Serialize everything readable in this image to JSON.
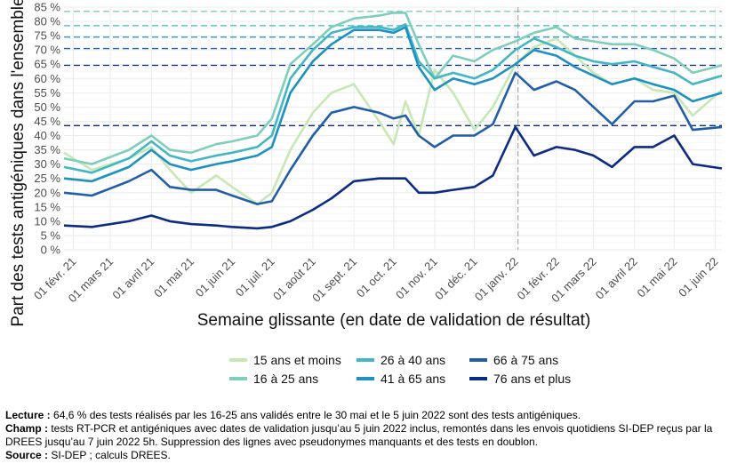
{
  "chart_data": {
    "type": "line",
    "title": "",
    "ylabel": "Part des tests antigéniques dans l'ensemble",
    "xlabel": "Semaine glissante (en date de validation de résultat)",
    "ylim": [
      0,
      85
    ],
    "y_ticks": [
      0,
      5,
      10,
      15,
      20,
      25,
      30,
      35,
      40,
      45,
      50,
      55,
      60,
      65,
      70,
      75,
      80,
      85
    ],
    "y_tick_labels": [
      "0 %",
      "5 %",
      "10 %",
      "15 %",
      "20 %",
      "25 %",
      "30 %",
      "35 %",
      "40 %",
      "45 %",
      "50 %",
      "55 %",
      "60 %",
      "65 %",
      "70 %",
      "75 %",
      "80 %",
      "85 %"
    ],
    "x_tick_labels": [
      "01 févr. 21",
      "01 mars 21",
      "01 avril 21",
      "01 mai 21",
      "01 juin 21",
      "01 juil. 21",
      "01 août 21",
      "01 sept. 21",
      "01 oct. 21",
      "01 nov. 21",
      "01 déc. 21",
      "01 janv. 22",
      "01 févr. 22",
      "01 mars 22",
      "01 avril 22",
      "01 mai 22",
      "01 juin 22"
    ],
    "x_ticks": [
      "2021-02-01",
      "2021-03-01",
      "2021-04-01",
      "2021-05-01",
      "2021-06-01",
      "2021-07-01",
      "2021-08-01",
      "2021-09-01",
      "2021-10-01",
      "2021-11-01",
      "2021-12-01",
      "2022-01-01",
      "2022-02-01",
      "2022-03-01",
      "2022-04-01",
      "2022-05-01",
      "2022-06-01"
    ],
    "xlim": [
      "2021-01-25",
      "2022-06-06"
    ],
    "grid": true,
    "legend_position": "bottom",
    "vertical_line": "2022-01-03",
    "reference_lines": [
      83.5,
      78.5,
      74.5,
      70.5,
      64.6,
      43.5
    ],
    "series": [
      {
        "name": "15 ans et moins",
        "color": "#c6e8b4",
        "x": [
          "2021-01-25",
          "2021-02-15",
          "2021-03-15",
          "2021-04-01",
          "2021-04-15",
          "2021-05-01",
          "2021-05-20",
          "2021-06-01",
          "2021-06-20",
          "2021-07-01",
          "2021-07-15",
          "2021-08-01",
          "2021-08-15",
          "2021-09-01",
          "2021-09-20",
          "2021-10-01",
          "2021-10-10",
          "2021-10-20",
          "2021-11-01",
          "2021-11-15",
          "2021-12-01",
          "2021-12-15",
          "2022-01-01",
          "2022-01-15",
          "2022-02-01",
          "2022-02-15",
          "2022-03-01",
          "2022-03-15",
          "2022-04-01",
          "2022-04-15",
          "2022-05-01",
          "2022-05-15",
          "2022-06-06"
        ],
        "values": [
          34,
          28,
          32,
          36,
          28,
          20,
          26,
          22,
          16,
          20,
          35,
          48,
          55,
          58,
          45,
          37,
          52,
          40,
          63,
          55,
          42,
          50,
          65,
          71,
          74,
          68,
          62,
          58,
          60,
          56,
          55,
          47,
          56
        ]
      },
      {
        "name": "16 à 25 ans",
        "color": "#7fcdbb",
        "x": [
          "2021-01-25",
          "2021-02-15",
          "2021-03-15",
          "2021-04-01",
          "2021-04-15",
          "2021-05-01",
          "2021-05-20",
          "2021-06-01",
          "2021-06-20",
          "2021-07-01",
          "2021-07-15",
          "2021-08-01",
          "2021-08-15",
          "2021-09-01",
          "2021-09-20",
          "2021-10-01",
          "2021-10-10",
          "2021-10-20",
          "2021-11-01",
          "2021-11-15",
          "2021-12-01",
          "2021-12-15",
          "2022-01-01",
          "2022-01-15",
          "2022-02-01",
          "2022-02-15",
          "2022-03-01",
          "2022-03-15",
          "2022-04-01",
          "2022-04-15",
          "2022-05-01",
          "2022-05-15",
          "2022-06-06"
        ],
        "values": [
          32,
          30,
          35,
          40,
          35,
          34,
          37,
          38,
          40,
          46,
          65,
          72,
          78,
          81,
          82,
          83,
          83,
          72,
          60,
          68,
          66,
          70,
          73,
          76,
          78,
          74,
          73,
          72,
          72,
          70,
          67,
          62,
          64.6
        ]
      },
      {
        "name": "26 à 40 ans",
        "color": "#41b6c4",
        "x": [
          "2021-01-25",
          "2021-02-15",
          "2021-03-15",
          "2021-04-01",
          "2021-04-15",
          "2021-05-01",
          "2021-05-20",
          "2021-06-01",
          "2021-06-20",
          "2021-07-01",
          "2021-07-15",
          "2021-08-01",
          "2021-08-15",
          "2021-09-01",
          "2021-09-20",
          "2021-10-01",
          "2021-10-10",
          "2021-10-20",
          "2021-11-01",
          "2021-11-15",
          "2021-12-01",
          "2021-12-15",
          "2022-01-01",
          "2022-01-15",
          "2022-02-01",
          "2022-02-15",
          "2022-03-01",
          "2022-03-15",
          "2022-04-01",
          "2022-04-15",
          "2022-05-01",
          "2022-05-15",
          "2022-06-06"
        ],
        "values": [
          29,
          27,
          32,
          38,
          33,
          31,
          33,
          34,
          36,
          40,
          60,
          70,
          76,
          78,
          78,
          77,
          79,
          66,
          60,
          62,
          60,
          63,
          70,
          74,
          71,
          68,
          66,
          65,
          66,
          64,
          62,
          58,
          61
        ]
      },
      {
        "name": "41 à 65 ans",
        "color": "#1d91c0",
        "x": [
          "2021-01-25",
          "2021-02-15",
          "2021-03-15",
          "2021-04-01",
          "2021-04-15",
          "2021-05-01",
          "2021-05-20",
          "2021-06-01",
          "2021-06-20",
          "2021-07-01",
          "2021-07-15",
          "2021-08-01",
          "2021-08-15",
          "2021-09-01",
          "2021-09-20",
          "2021-10-01",
          "2021-10-10",
          "2021-10-20",
          "2021-11-01",
          "2021-11-15",
          "2021-12-01",
          "2021-12-15",
          "2022-01-01",
          "2022-01-15",
          "2022-02-01",
          "2022-02-15",
          "2022-03-01",
          "2022-03-15",
          "2022-04-01",
          "2022-04-15",
          "2022-05-01",
          "2022-05-15",
          "2022-06-06"
        ],
        "values": [
          25,
          24,
          29,
          35,
          30,
          28,
          30,
          31,
          33,
          36,
          55,
          66,
          72,
          77,
          77,
          76,
          78,
          64,
          56,
          60,
          58,
          60,
          65,
          70,
          68,
          64,
          61,
          58,
          60,
          58,
          56,
          52,
          55
        ]
      },
      {
        "name": "66 à 75 ans",
        "color": "#225ea8",
        "x": [
          "2021-01-25",
          "2021-02-15",
          "2021-03-15",
          "2021-04-01",
          "2021-04-15",
          "2021-05-01",
          "2021-05-20",
          "2021-06-01",
          "2021-06-20",
          "2021-07-01",
          "2021-07-15",
          "2021-08-01",
          "2021-08-15",
          "2021-09-01",
          "2021-09-20",
          "2021-10-01",
          "2021-10-10",
          "2021-10-20",
          "2021-11-01",
          "2021-11-15",
          "2021-12-01",
          "2021-12-15",
          "2022-01-01",
          "2022-01-15",
          "2022-02-01",
          "2022-02-15",
          "2022-03-01",
          "2022-03-15",
          "2022-04-01",
          "2022-04-15",
          "2022-05-01",
          "2022-05-15",
          "2022-06-06"
        ],
        "values": [
          20,
          19,
          24,
          28,
          22,
          21,
          21,
          19,
          16,
          17,
          28,
          40,
          48,
          50,
          48,
          46,
          47,
          40,
          36,
          40,
          40,
          44,
          62,
          56,
          59,
          56,
          50,
          44,
          52,
          52,
          54,
          42,
          43
        ]
      },
      {
        "name": "76 ans et plus",
        "color": "#0c2c84",
        "x": [
          "2021-01-25",
          "2021-02-15",
          "2021-03-15",
          "2021-04-01",
          "2021-04-15",
          "2021-05-01",
          "2021-05-20",
          "2021-06-01",
          "2021-06-20",
          "2021-07-01",
          "2021-07-15",
          "2021-08-01",
          "2021-08-15",
          "2021-09-01",
          "2021-09-20",
          "2021-10-01",
          "2021-10-10",
          "2021-10-20",
          "2021-11-01",
          "2021-11-15",
          "2021-12-01",
          "2021-12-15",
          "2022-01-01",
          "2022-01-15",
          "2022-02-01",
          "2022-02-15",
          "2022-03-01",
          "2022-03-15",
          "2022-04-01",
          "2022-04-15",
          "2022-05-01",
          "2022-05-15",
          "2022-06-06"
        ],
        "values": [
          8.5,
          8,
          10,
          12,
          10,
          9,
          8.5,
          8,
          7.5,
          8,
          10,
          14,
          18,
          24,
          25,
          25,
          25,
          20,
          20,
          21,
          22,
          26,
          43,
          33,
          36,
          35,
          33,
          29,
          36,
          36,
          40,
          30,
          28.5
        ]
      }
    ]
  },
  "notes": {
    "lecture_label": "Lecture :",
    "lecture_text": " 64,6 % des tests réalisés par les 16-25 ans validés entre le 30 mai et le 5 juin 2022 sont des tests antigéniques.",
    "champ_label": "Champ :",
    "champ_text": " tests RT-PCR et antigéniques avec dates de validation jusqu’au 5 juin 2022 inclus, remontés dans les envois quotidiens SI-DEP reçus par la DREES jusqu’au 7 juin 2022 5h. Suppression des lignes avec pseudonymes manquants et des tests en doublon.",
    "source_label": "Source :",
    "source_text": " SI-DEP ; calculs DREES."
  }
}
